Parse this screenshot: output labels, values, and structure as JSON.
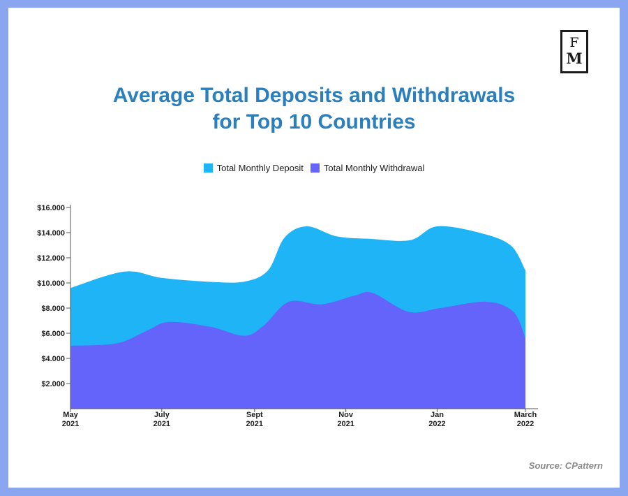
{
  "logo": {
    "line1": "F",
    "line2": "M"
  },
  "colors": {
    "deposit": "#1eb4f5",
    "withdrawal": "#6464fa",
    "title": "#2b7fbc",
    "frame": "#8aa6f0"
  },
  "source": "Source: CPattern",
  "chart_data": {
    "type": "area",
    "title_lines": [
      "Average Total Deposits and Withdrawals",
      "for Top 10 Countries"
    ],
    "legend_position": "top-center",
    "grid": false,
    "ylim": [
      0,
      16000
    ],
    "yticks": [
      {
        "value": 2000,
        "label": "$2.000"
      },
      {
        "value": 4000,
        "label": "$4.000"
      },
      {
        "value": 6000,
        "label": "$6.000"
      },
      {
        "value": 8000,
        "label": "$8.000"
      },
      {
        "value": 10000,
        "label": "$10.000"
      },
      {
        "value": 12000,
        "label": "$12.000"
      },
      {
        "value": 14000,
        "label": "$14.000"
      },
      {
        "value": 16000,
        "label": "$16.000"
      }
    ],
    "xlim": [
      "2021-05",
      "2022-03"
    ],
    "xticks": [
      {
        "x": "2021-05",
        "month": "May",
        "year": "2021"
      },
      {
        "x": "2021-07",
        "month": "July",
        "year": "2021"
      },
      {
        "x": "2021-09",
        "month": "Sept",
        "year": "2021"
      },
      {
        "x": "2021-11",
        "month": "Nov",
        "year": "2021"
      },
      {
        "x": "2022-01",
        "month": "Jan",
        "year": "2022"
      },
      {
        "x": "2022-03",
        "month": "March",
        "year": "2022"
      }
    ],
    "series": [
      {
        "name": "Total Monthly Deposit",
        "points": [
          {
            "x": "2021-05-01",
            "y": 9600
          },
          {
            "x": "2021-06-06",
            "y": 10900
          },
          {
            "x": "2021-07-01",
            "y": 10400
          },
          {
            "x": "2021-08-01",
            "y": 10100
          },
          {
            "x": "2021-08-25",
            "y": 10100
          },
          {
            "x": "2021-09-10",
            "y": 11000
          },
          {
            "x": "2021-09-21",
            "y": 13600
          },
          {
            "x": "2021-10-06",
            "y": 14500
          },
          {
            "x": "2021-10-26",
            "y": 13700
          },
          {
            "x": "2021-11-18",
            "y": 13500
          },
          {
            "x": "2021-12-14",
            "y": 13400
          },
          {
            "x": "2022-01-01",
            "y": 14500
          },
          {
            "x": "2022-01-29",
            "y": 14000
          },
          {
            "x": "2022-02-19",
            "y": 13000
          },
          {
            "x": "2022-03-01",
            "y": 11000
          }
        ]
      },
      {
        "name": "Total Monthly Withdrawal",
        "points": [
          {
            "x": "2021-05-01",
            "y": 5000
          },
          {
            "x": "2021-06-01",
            "y": 5200
          },
          {
            "x": "2021-06-21",
            "y": 6200
          },
          {
            "x": "2021-07-06",
            "y": 6900
          },
          {
            "x": "2021-08-03",
            "y": 6500
          },
          {
            "x": "2021-08-25",
            "y": 5800
          },
          {
            "x": "2021-09-07",
            "y": 6600
          },
          {
            "x": "2021-09-24",
            "y": 8500
          },
          {
            "x": "2021-10-16",
            "y": 8300
          },
          {
            "x": "2021-11-07",
            "y": 9000
          },
          {
            "x": "2021-11-19",
            "y": 9200
          },
          {
            "x": "2021-12-13",
            "y": 7700
          },
          {
            "x": "2022-01-03",
            "y": 8000
          },
          {
            "x": "2022-02-03",
            "y": 8500
          },
          {
            "x": "2022-02-21",
            "y": 7700
          },
          {
            "x": "2022-03-01",
            "y": 5600
          }
        ]
      }
    ]
  }
}
